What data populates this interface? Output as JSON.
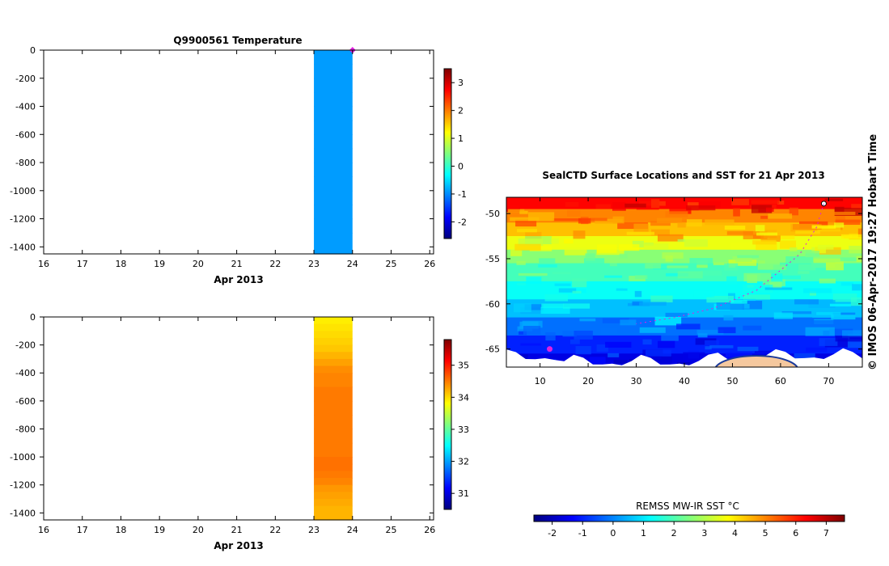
{
  "credit": "© IMOS 06-Apr-2017 19:27 Hobart Time",
  "colors": {
    "jet": [
      "#00007f",
      "#0000ff",
      "#007fff",
      "#00ffff",
      "#7fff7f",
      "#ffff00",
      "#ff7f00",
      "#ff0000",
      "#7f0000"
    ],
    "marker": "#e020e0",
    "land": "#f5c89e",
    "ice": "#ffffff"
  },
  "chart_data": [
    {
      "type": "heatmap",
      "title": "Q9900561  Temperature",
      "xlabel": "Apr 2013",
      "ylabel": "",
      "x_ticks": [
        "16",
        "17",
        "18",
        "19",
        "20",
        "21",
        "22",
        "23",
        "24",
        "25",
        "26"
      ],
      "xlim": [
        16,
        26.1
      ],
      "y_ticks": [
        "0",
        "-200",
        "-400",
        "-600",
        "-800",
        "-1000",
        "-1200",
        "-1400"
      ],
      "ylim": [
        -1450,
        0
      ],
      "profile_x_range": [
        23,
        24
      ],
      "depths": [
        0,
        -100,
        -200,
        -300,
        -400,
        -500,
        -600,
        -700,
        -800,
        -900,
        -1000,
        -1100,
        -1200,
        -1300,
        -1450
      ],
      "values": [
        -0.9,
        -0.9,
        -0.9,
        -0.9,
        -0.9,
        -0.9,
        -0.9,
        -0.9,
        -0.9,
        -0.9,
        -0.9,
        -0.9,
        -0.9,
        -0.9,
        -0.9
      ],
      "surface_marker": {
        "x": 24,
        "y": 0
      },
      "colorbar": {
        "min": -2.6,
        "max": 3.5,
        "ticks": [
          "3",
          "2",
          "1",
          "0",
          "-1",
          "-2"
        ]
      }
    },
    {
      "type": "heatmap",
      "title": "",
      "xlabel": "Apr 2013",
      "ylabel": "",
      "x_ticks": [
        "16",
        "17",
        "18",
        "19",
        "20",
        "21",
        "22",
        "23",
        "24",
        "25",
        "26"
      ],
      "xlim": [
        16,
        26.1
      ],
      "y_ticks": [
        "0",
        "-200",
        "-400",
        "-600",
        "-800",
        "-1000",
        "-1200",
        "-1400"
      ],
      "ylim": [
        -1450,
        0
      ],
      "profile_x_range": [
        23,
        24
      ],
      "depths": [
        0,
        -50,
        -100,
        -150,
        -200,
        -250,
        -300,
        -350,
        -400,
        -500,
        -600,
        -700,
        -800,
        -900,
        -1000,
        -1050,
        -1100,
        -1150,
        -1200,
        -1250,
        -1300,
        -1350,
        -1400,
        -1450
      ],
      "values": [
        33.9,
        33.95,
        34.0,
        34.05,
        34.1,
        34.2,
        34.3,
        34.4,
        34.45,
        34.5,
        34.5,
        34.5,
        34.5,
        34.5,
        34.55,
        34.55,
        34.5,
        34.45,
        34.35,
        34.3,
        34.25,
        34.2,
        34.2,
        34.2
      ],
      "colorbar": {
        "min": 30.5,
        "max": 35.8,
        "ticks": [
          "35",
          "34",
          "33",
          "32",
          "31"
        ]
      }
    },
    {
      "type": "heatmap",
      "title": "SealCTD Surface Locations and SST for 21 Apr 2013",
      "xlabel": "",
      "ylabel": "",
      "x_ticks": [
        "10",
        "20",
        "30",
        "40",
        "50",
        "60",
        "70"
      ],
      "xlim": [
        3,
        77
      ],
      "y_ticks": [
        "-50",
        "-55",
        "-60",
        "-65"
      ],
      "ylim": [
        -67,
        -48.2
      ],
      "sst_bands": [
        {
          "lat": [
            -48.2,
            -49.5
          ],
          "sst": 6.3
        },
        {
          "lat": [
            -49.5,
            -51.0
          ],
          "sst": 5.0
        },
        {
          "lat": [
            -51.0,
            -52.5
          ],
          "sst": 4.4
        },
        {
          "lat": [
            -52.5,
            -54.0
          ],
          "sst": 3.6
        },
        {
          "lat": [
            -54.0,
            -55.5
          ],
          "sst": 2.6
        },
        {
          "lat": [
            -55.5,
            -57.5
          ],
          "sst": 1.9
        },
        {
          "lat": [
            -57.5,
            -59.5
          ],
          "sst": 1.3
        },
        {
          "lat": [
            -59.5,
            -61.5
          ],
          "sst": 0.6
        },
        {
          "lat": [
            -61.5,
            -63.5
          ],
          "sst": -0.2
        },
        {
          "lat": [
            -63.5,
            -65.5
          ],
          "sst": -1.0
        },
        {
          "lat": [
            -65.5,
            -67.0
          ],
          "sst": -1.6
        }
      ],
      "seal_location": {
        "lon": 12,
        "lat": -65
      },
      "track": [
        [
          69,
          -48.9
        ],
        [
          67.5,
          -51.5
        ],
        [
          64,
          -54.5
        ],
        [
          55,
          -58.5
        ],
        [
          46,
          -60.5
        ],
        [
          38,
          -61.5
        ],
        [
          30,
          -62.2
        ]
      ],
      "colorbar": {
        "label": "REMSS MW-IR SST °C",
        "min": -2.6,
        "max": 7.6,
        "ticks": [
          "-2",
          "-1",
          "0",
          "1",
          "2",
          "3",
          "4",
          "5",
          "6",
          "7"
        ]
      }
    }
  ]
}
